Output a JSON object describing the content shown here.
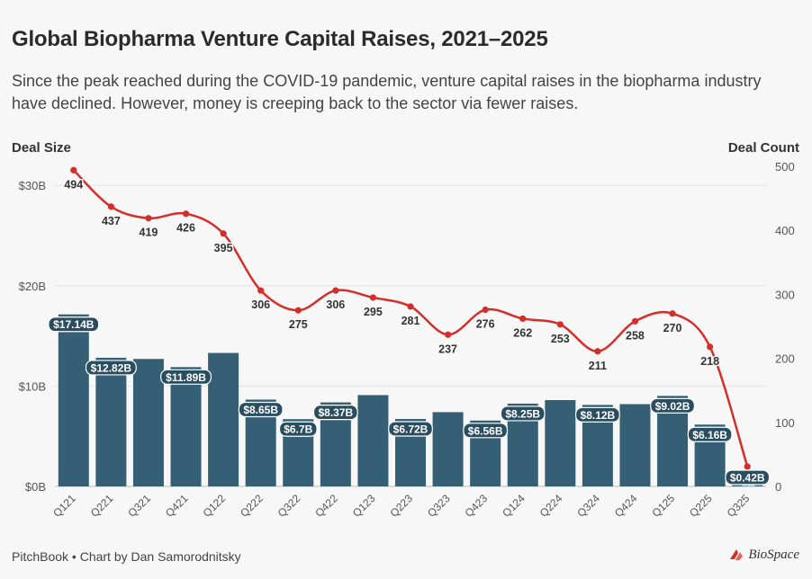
{
  "title": "Global Biopharma Venture Capital Raises, 2021–2025",
  "subtitle": "Since the peak reached during the COVID-19 pandemic, venture capital raises in the biopharma industry have declined. However, money is creeping back to the sector via fewer raises.",
  "footer": {
    "source": "PitchBook • Chart by Dan Samorodnitsky",
    "logo_text": "BioSpace"
  },
  "colors": {
    "bar": "#355f74",
    "line": "#d42e2a",
    "grid": "#e3e3e3",
    "label_bg": "#2a4e60"
  },
  "chart_data": {
    "type": "bar",
    "title": "Global Biopharma Venture Capital Raises, 2021–2025",
    "left_axis_title": "Deal Size",
    "right_axis_title": "Deal Count",
    "categories": [
      "Q121",
      "Q221",
      "Q321",
      "Q421",
      "Q122",
      "Q222",
      "Q322",
      "Q422",
      "Q123",
      "Q223",
      "Q323",
      "Q423",
      "Q124",
      "Q224",
      "Q324",
      "Q424",
      "Q125",
      "Q225",
      "Q325"
    ],
    "y_left_ticks": [
      {
        "value": 0,
        "label": "$0B"
      },
      {
        "value": 10,
        "label": "$10B"
      },
      {
        "value": 20,
        "label": "$20B"
      },
      {
        "value": 30,
        "label": "$30B"
      }
    ],
    "y_right_ticks": [
      {
        "value": 0,
        "label": "0"
      },
      {
        "value": 100,
        "label": "100"
      },
      {
        "value": 200,
        "label": "200"
      },
      {
        "value": 300,
        "label": "300"
      },
      {
        "value": 400,
        "label": "400"
      },
      {
        "value": 500,
        "label": "500"
      }
    ],
    "y_left_range": [
      0,
      31.9
    ],
    "y_right_range": [
      0,
      500
    ],
    "series": [
      {
        "name": "Deal Size ($B)",
        "type": "bar",
        "axis": "left",
        "values": [
          17.14,
          12.82,
          12.7,
          11.89,
          13.3,
          8.65,
          6.7,
          8.37,
          9.1,
          6.72,
          7.4,
          6.56,
          8.25,
          8.6,
          8.12,
          8.2,
          9.02,
          6.16,
          0.42
        ],
        "labels": [
          "$17.14B",
          "$12.82B",
          "",
          "$11.89B",
          "",
          "$8.65B",
          "$6.7B",
          "$8.37B",
          "",
          "$6.72B",
          "",
          "$6.56B",
          "$8.25B",
          "",
          "$8.12B",
          "",
          "$9.02B",
          "$6.16B",
          "$0.42B"
        ]
      },
      {
        "name": "Deal Count",
        "type": "line",
        "axis": "right",
        "values": [
          494,
          437,
          419,
          426,
          395,
          306,
          275,
          306,
          295,
          281,
          237,
          276,
          262,
          253,
          211,
          258,
          270,
          218,
          31
        ]
      }
    ]
  }
}
